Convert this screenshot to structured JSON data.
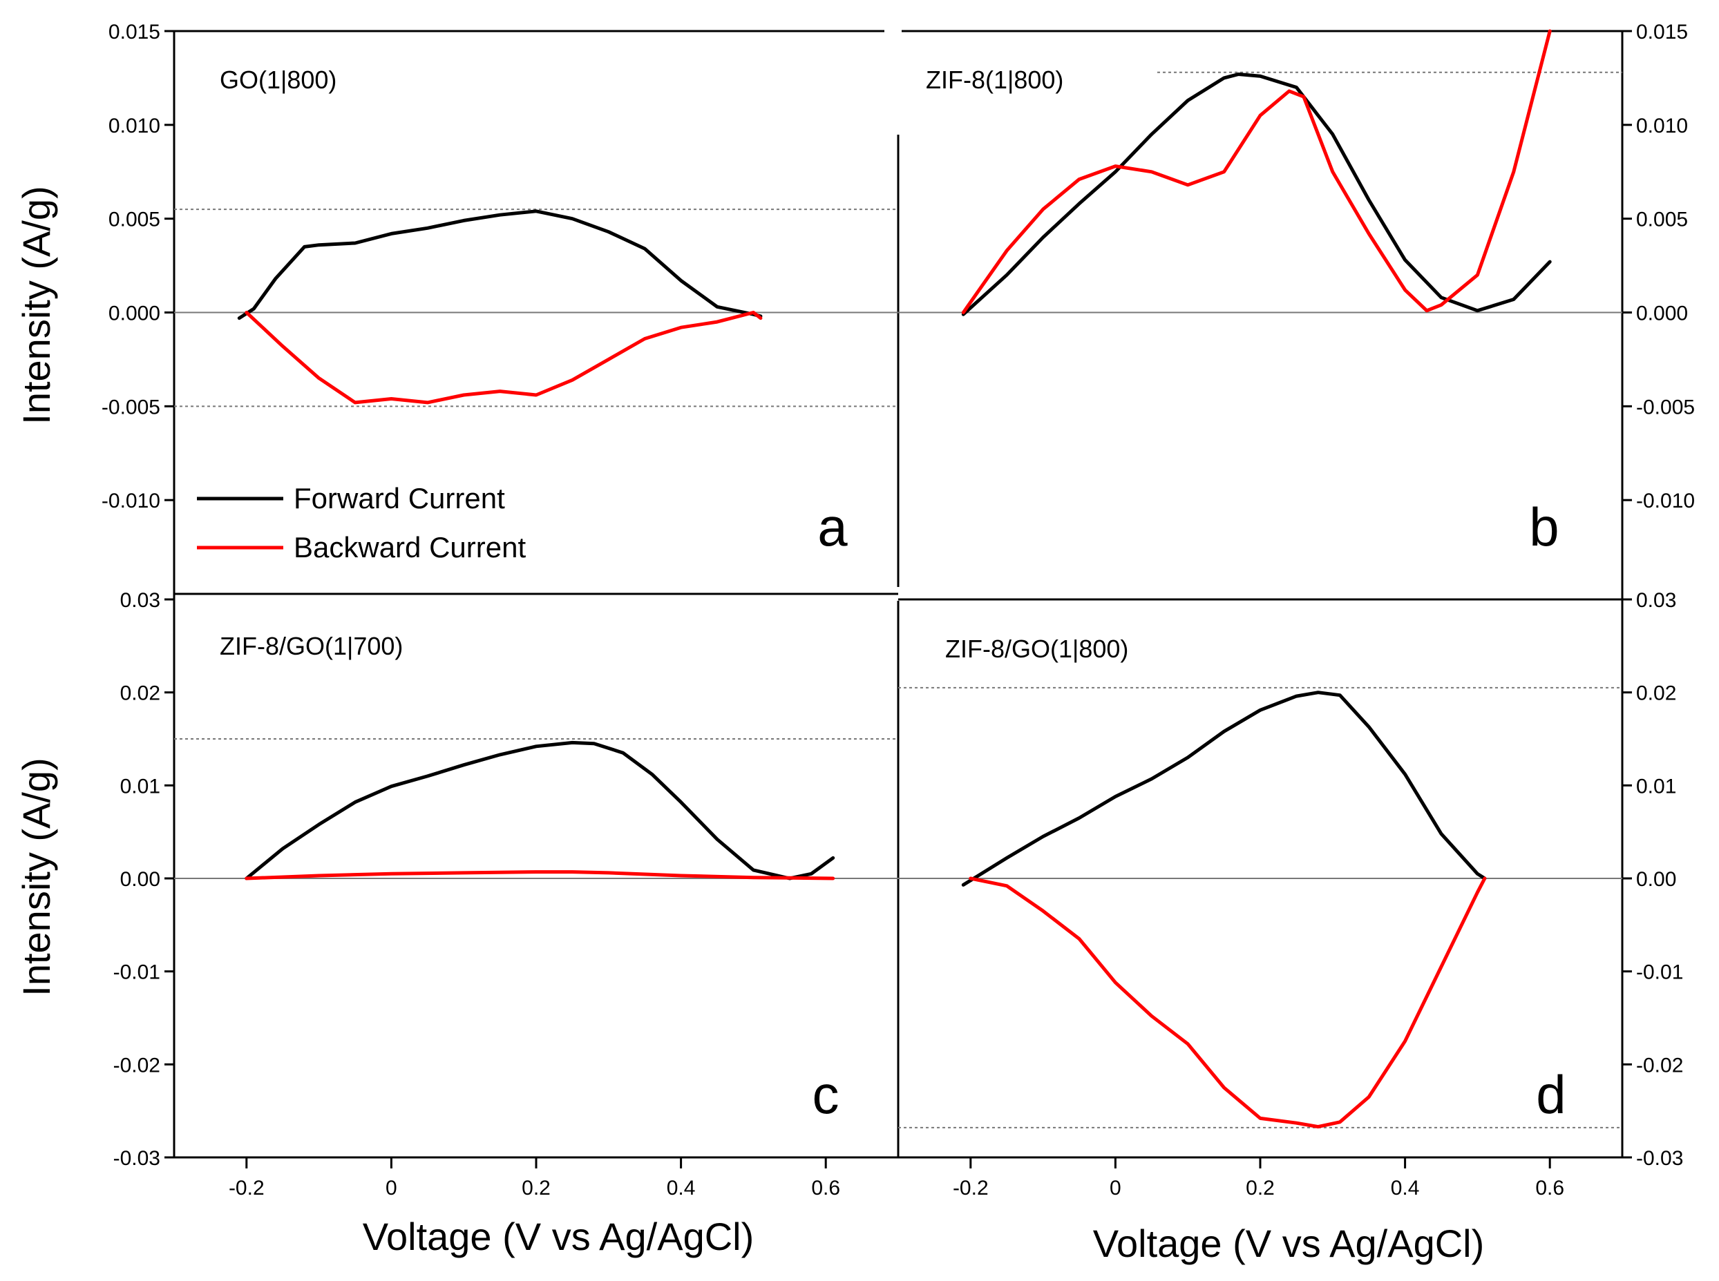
{
  "chart_data": [
    {
      "type": "line",
      "panel": "a",
      "title": "GO(1|800)",
      "xlim": [
        -0.3,
        0.7
      ],
      "ylim": [
        -0.015,
        0.015
      ],
      "x_ticks": [
        -0.2,
        0.0,
        0.2,
        0.4,
        0.6
      ],
      "y_ticks": [
        {
          "value": 0.015,
          "label": "0.015"
        },
        {
          "value": 0.01,
          "label": "0.010"
        },
        {
          "value": 0.005,
          "label": "0.005"
        },
        {
          "value": 0.0,
          "label": "0.000"
        },
        {
          "value": -0.005,
          "label": "-0.005"
        },
        {
          "value": -0.01,
          "label": "-0.010"
        }
      ],
      "y_axis_side": "left",
      "reference_lines": [
        0.0055,
        -0.005
      ],
      "legend": {
        "placement": "bottom-left",
        "entries": [
          "Forward Current",
          "Backward Current"
        ]
      },
      "series": [
        {
          "name": "Forward Current",
          "color": "#000000",
          "x": [
            -0.21,
            -0.19,
            -0.16,
            -0.12,
            -0.1,
            -0.05,
            0.0,
            0.05,
            0.1,
            0.15,
            0.2,
            0.25,
            0.3,
            0.35,
            0.4,
            0.45,
            0.5,
            0.51
          ],
          "y": [
            -0.0003,
            0.0002,
            0.0018,
            0.0035,
            0.0036,
            0.0037,
            0.0042,
            0.0045,
            0.0049,
            0.0052,
            0.0054,
            0.005,
            0.0043,
            0.0034,
            0.0017,
            0.0003,
            -0.0001,
            -0.0002
          ]
        },
        {
          "name": "Backward Current",
          "color": "#ff0000",
          "x": [
            -0.2,
            -0.15,
            -0.1,
            -0.05,
            0.0,
            0.05,
            0.1,
            0.15,
            0.2,
            0.25,
            0.3,
            0.35,
            0.4,
            0.45,
            0.48,
            0.5,
            0.51
          ],
          "y": [
            0.0,
            -0.0018,
            -0.0035,
            -0.0048,
            -0.0046,
            -0.0048,
            -0.0044,
            -0.0042,
            -0.0044,
            -0.0036,
            -0.0025,
            -0.0014,
            -0.0008,
            -0.0005,
            -0.0002,
            0.0,
            -0.0003
          ]
        }
      ]
    },
    {
      "type": "line",
      "panel": "b",
      "title": "ZIF-8(1|800)",
      "xlim": [
        -0.3,
        0.7
      ],
      "ylim": [
        -0.015,
        0.015
      ],
      "x_ticks": [
        -0.2,
        0.0,
        0.2,
        0.4,
        0.6
      ],
      "y_ticks": [
        {
          "value": 0.015,
          "label": "0.015"
        },
        {
          "value": 0.01,
          "label": "0.010"
        },
        {
          "value": 0.005,
          "label": "0.005"
        },
        {
          "value": 0.0,
          "label": "0.000"
        },
        {
          "value": -0.005,
          "label": "-0.005"
        },
        {
          "value": -0.01,
          "label": "-0.010"
        }
      ],
      "y_axis_side": "right",
      "reference_lines": [
        0.0128
      ],
      "series": [
        {
          "name": "Forward Current",
          "color": "#000000",
          "x": [
            -0.21,
            -0.15,
            -0.1,
            -0.05,
            0.0,
            0.05,
            0.1,
            0.15,
            0.17,
            0.2,
            0.25,
            0.3,
            0.35,
            0.4,
            0.45,
            0.5,
            0.55,
            0.6
          ],
          "y": [
            -0.0001,
            0.002,
            0.004,
            0.0058,
            0.0075,
            0.0095,
            0.0113,
            0.0125,
            0.0127,
            0.0126,
            0.012,
            0.0095,
            0.006,
            0.0028,
            0.0008,
            0.0001,
            0.0007,
            0.0027
          ]
        },
        {
          "name": "Backward Current",
          "color": "#ff0000",
          "x": [
            -0.21,
            -0.15,
            -0.1,
            -0.05,
            0.0,
            0.05,
            0.1,
            0.15,
            0.2,
            0.24,
            0.26,
            0.3,
            0.35,
            0.4,
            0.43,
            0.45,
            0.5,
            0.55,
            0.6
          ],
          "y": [
            0.0,
            0.0033,
            0.0055,
            0.0071,
            0.0078,
            0.0075,
            0.0068,
            0.0075,
            0.0105,
            0.0118,
            0.0115,
            0.0075,
            0.0042,
            0.0012,
            0.0001,
            0.0004,
            0.002,
            0.0075,
            0.015
          ]
        }
      ]
    },
    {
      "type": "line",
      "panel": "c",
      "title": "ZIF-8/GO(1|700)",
      "xlim": [
        -0.3,
        0.7
      ],
      "ylim": [
        -0.03,
        0.03
      ],
      "x_ticks": [
        -0.2,
        0.0,
        0.2,
        0.4,
        0.6
      ],
      "y_ticks": [
        {
          "value": 0.03,
          "label": "0.03"
        },
        {
          "value": 0.02,
          "label": "0.02"
        },
        {
          "value": 0.01,
          "label": "0.01"
        },
        {
          "value": 0.0,
          "label": "0.00"
        },
        {
          "value": -0.01,
          "label": "-0.01"
        },
        {
          "value": -0.02,
          "label": "-0.02"
        },
        {
          "value": -0.03,
          "label": "-0.03"
        }
      ],
      "y_axis_side": "left",
      "reference_lines": [
        0.015
      ],
      "series": [
        {
          "name": "Forward Current",
          "color": "#000000",
          "x": [
            -0.2,
            -0.15,
            -0.1,
            -0.05,
            0.0,
            0.05,
            0.1,
            0.15,
            0.2,
            0.25,
            0.28,
            0.32,
            0.36,
            0.4,
            0.45,
            0.5,
            0.55,
            0.58,
            0.61
          ],
          "y": [
            0.0,
            0.0032,
            0.0058,
            0.0082,
            0.0099,
            0.011,
            0.0122,
            0.0133,
            0.0142,
            0.0146,
            0.0145,
            0.0135,
            0.0112,
            0.0082,
            0.0042,
            0.0009,
            0.0,
            0.0005,
            0.0022
          ]
        },
        {
          "name": "Backward Current",
          "color": "#ff0000",
          "x": [
            -0.2,
            -0.1,
            0.0,
            0.1,
            0.2,
            0.25,
            0.3,
            0.4,
            0.5,
            0.61
          ],
          "y": [
            0.0,
            0.0003,
            0.0005,
            0.0006,
            0.0007,
            0.0007,
            0.0006,
            0.0003,
            0.0001,
            0.0
          ]
        }
      ]
    },
    {
      "type": "line",
      "panel": "d",
      "title": "ZIF-8/GO(1|800)",
      "xlim": [
        -0.3,
        0.7
      ],
      "ylim": [
        -0.03,
        0.03
      ],
      "x_ticks": [
        -0.2,
        0.0,
        0.2,
        0.4,
        0.6
      ],
      "y_ticks": [
        {
          "value": 0.03,
          "label": "0.03"
        },
        {
          "value": 0.02,
          "label": "0.02"
        },
        {
          "value": 0.01,
          "label": "0.01"
        },
        {
          "value": 0.0,
          "label": "0.00"
        },
        {
          "value": -0.01,
          "label": "-0.01"
        },
        {
          "value": -0.02,
          "label": "-0.02"
        },
        {
          "value": -0.03,
          "label": "-0.03"
        }
      ],
      "y_axis_side": "right",
      "reference_lines": [
        0.0205,
        -0.0268
      ],
      "series": [
        {
          "name": "Forward Current",
          "color": "#000000",
          "x": [
            -0.21,
            -0.15,
            -0.1,
            -0.05,
            0.0,
            0.05,
            0.1,
            0.15,
            0.2,
            0.25,
            0.28,
            0.31,
            0.35,
            0.4,
            0.45,
            0.5,
            0.51
          ],
          "y": [
            -0.0007,
            0.0022,
            0.0045,
            0.0065,
            0.0088,
            0.0107,
            0.013,
            0.0158,
            0.0181,
            0.0196,
            0.02,
            0.0197,
            0.0163,
            0.0112,
            0.0048,
            0.0005,
            0.0
          ]
        },
        {
          "name": "Backward Current",
          "color": "#ff0000",
          "x": [
            -0.2,
            -0.15,
            -0.1,
            -0.05,
            0.0,
            0.05,
            0.1,
            0.15,
            0.2,
            0.25,
            0.28,
            0.31,
            0.35,
            0.4,
            0.45,
            0.5,
            0.51
          ],
          "y": [
            0.0,
            -0.0008,
            -0.0035,
            -0.0065,
            -0.0112,
            -0.0148,
            -0.0178,
            -0.0225,
            -0.0258,
            -0.0263,
            -0.0267,
            -0.0262,
            -0.0235,
            -0.0175,
            -0.0095,
            -0.0015,
            0.0
          ]
        }
      ]
    }
  ],
  "axes": {
    "ylabel": "Intensity (A/g)",
    "xlabel": "Voltage (V vs Ag/AgCl)"
  },
  "panel_letters": [
    "a",
    "b",
    "c",
    "d"
  ]
}
